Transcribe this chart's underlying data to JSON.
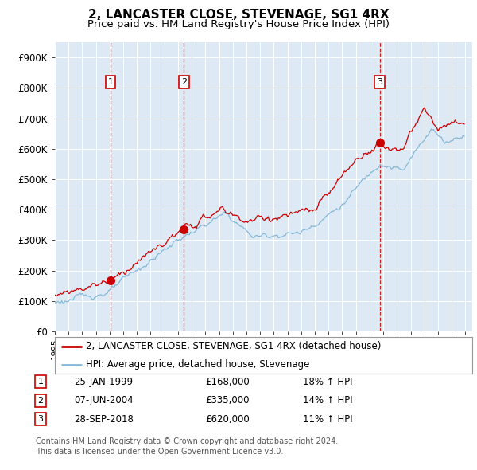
{
  "title": "2, LANCASTER CLOSE, STEVENAGE, SG1 4RX",
  "subtitle": "Price paid vs. HM Land Registry's House Price Index (HPI)",
  "ylim": [
    0,
    950000
  ],
  "yticks": [
    0,
    100000,
    200000,
    300000,
    400000,
    500000,
    600000,
    700000,
    800000,
    900000
  ],
  "ytick_labels": [
    "£0",
    "£100K",
    "£200K",
    "£300K",
    "£400K",
    "£500K",
    "£600K",
    "£700K",
    "£800K",
    "£900K"
  ],
  "background_color": "#ffffff",
  "plot_bg_color": "#ddeaf5",
  "grid_color": "#ffffff",
  "sale_color": "#cc0000",
  "hpi_color": "#85b8d8",
  "vline_color": "#cc0000",
  "transactions": [
    {
      "date_num": 1999.07,
      "price": 168000,
      "label": "1"
    },
    {
      "date_num": 2004.43,
      "price": 335000,
      "label": "2"
    },
    {
      "date_num": 2018.74,
      "price": 620000,
      "label": "3"
    }
  ],
  "legend_sale_label": "2, LANCASTER CLOSE, STEVENAGE, SG1 4RX (detached house)",
  "legend_hpi_label": "HPI: Average price, detached house, Stevenage",
  "table_rows": [
    {
      "num": "1",
      "date": "25-JAN-1999",
      "price": "£168,000",
      "hpi": "18% ↑ HPI"
    },
    {
      "num": "2",
      "date": "07-JUN-2004",
      "price": "£335,000",
      "hpi": "14% ↑ HPI"
    },
    {
      "num": "3",
      "date": "28-SEP-2018",
      "price": "£620,000",
      "hpi": "11% ↑ HPI"
    }
  ],
  "footnote1": "Contains HM Land Registry data © Crown copyright and database right 2024.",
  "footnote2": "This data is licensed under the Open Government Licence v3.0."
}
